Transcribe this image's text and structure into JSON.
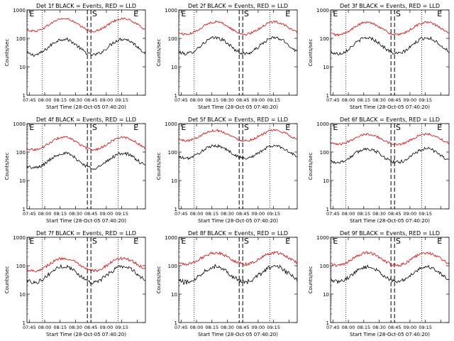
{
  "chart_data": [
    {
      "type": "line",
      "title": "Det 1f BLACK = Events, RED = LLD",
      "xlabel": "Start Time (28-Oct-05 07:40:20)",
      "ylabel": "Counts/sec",
      "yscale": "log",
      "ylim": [
        1,
        1000
      ],
      "ytick_labels": [
        "1",
        "10",
        "100",
        "1000"
      ],
      "xtick_labels": [
        "07:45",
        "08:00",
        "08:15",
        "08:30",
        "08:45",
        "09:00",
        "09:15"
      ],
      "markers": [
        "E",
        "S",
        "E"
      ],
      "series": [
        {
          "name": "Events",
          "color": "#000000",
          "base": 50,
          "amplitude": 0.28,
          "noise": 0.06
        },
        {
          "name": "LLD",
          "color": "#e00000",
          "base": 300,
          "amplitude": 0.22,
          "noise": 0.04
        }
      ]
    },
    {
      "type": "line",
      "title": "Det 2f BLACK = Events, RED = LLD",
      "xlabel": "Start Time (28-Oct-05 07:40:20)",
      "ylabel": "Counts/sec",
      "yscale": "log",
      "ylim": [
        1,
        1000
      ],
      "ytick_labels": [
        "1",
        "10",
        "100",
        "1000"
      ],
      "xtick_labels": [
        "07:45",
        "08:00",
        "08:15",
        "08:30",
        "08:45",
        "09:00",
        "09:15"
      ],
      "markers": [
        "E",
        "S",
        "E"
      ],
      "series": [
        {
          "name": "Events",
          "color": "#000000",
          "base": 55,
          "amplitude": 0.28,
          "noise": 0.06
        },
        {
          "name": "LLD",
          "color": "#e00000",
          "base": 230,
          "amplitude": 0.22,
          "noise": 0.04
        }
      ]
    },
    {
      "type": "line",
      "title": "Det 3f BLACK = Events, RED = LLD",
      "xlabel": "Start Time (28-Oct-05 07:40:20)",
      "ylabel": "Counts/sec",
      "yscale": "log",
      "ylim": [
        1,
        1000
      ],
      "ytick_labels": [
        "1",
        "10",
        "100",
        "1000"
      ],
      "xtick_labels": [
        "07:45",
        "08:00",
        "08:15",
        "08:30",
        "08:45",
        "09:00",
        "09:15"
      ],
      "markers": [
        "E",
        "S",
        "E"
      ],
      "series": [
        {
          "name": "Events",
          "color": "#000000",
          "base": 55,
          "amplitude": 0.28,
          "noise": 0.06
        },
        {
          "name": "LLD",
          "color": "#e00000",
          "base": 220,
          "amplitude": 0.22,
          "noise": 0.04
        }
      ]
    },
    {
      "type": "line",
      "title": "Det 4f BLACK = Events, RED = LLD",
      "xlabel": "Start Time (28-Oct-05 07:40:20)",
      "ylabel": "Counts/sec",
      "yscale": "log",
      "ylim": [
        1,
        1000
      ],
      "ytick_labels": [
        "1",
        "10",
        "100",
        "1000"
      ],
      "xtick_labels": [
        "07:45",
        "08:00",
        "08:15",
        "08:30",
        "08:45",
        "09:00",
        "09:15"
      ],
      "markers": [
        "E",
        "S",
        "E"
      ],
      "series": [
        {
          "name": "Events",
          "color": "#000000",
          "base": 50,
          "amplitude": 0.26,
          "noise": 0.06
        },
        {
          "name": "LLD",
          "color": "#e00000",
          "base": 200,
          "amplitude": 0.22,
          "noise": 0.04
        }
      ]
    },
    {
      "type": "line",
      "title": "Det 5f BLACK = Events, RED = LLD",
      "xlabel": "Start Time (28-Oct-05 07:40:20)",
      "ylabel": "Counts/sec",
      "yscale": "log",
      "ylim": [
        1,
        1000
      ],
      "ytick_labels": [
        "1",
        "10",
        "100",
        "1000"
      ],
      "xtick_labels": [
        "07:45",
        "08:00",
        "08:15",
        "08:30",
        "08:45",
        "09:00",
        "09:15"
      ],
      "markers": [
        "E",
        "S",
        "E"
      ],
      "series": [
        {
          "name": "Events",
          "color": "#000000",
          "base": 100,
          "amplitude": 0.22,
          "noise": 0.05
        },
        {
          "name": "LLD",
          "color": "#e00000",
          "base": 380,
          "amplitude": 0.18,
          "noise": 0.04
        }
      ]
    },
    {
      "type": "line",
      "title": "Det 6f BLACK = Events, RED = LLD",
      "xlabel": "Start Time (28-Oct-05 07:40:20)",
      "ylabel": "Counts/sec",
      "yscale": "log",
      "ylim": [
        1,
        1000
      ],
      "ytick_labels": [
        "1",
        "10",
        "100",
        "1000"
      ],
      "xtick_labels": [
        "07:45",
        "08:00",
        "08:15",
        "08:30",
        "08:45",
        "09:00",
        "09:15"
      ],
      "markers": [
        "E",
        "S",
        "E"
      ],
      "series": [
        {
          "name": "Events",
          "color": "#000000",
          "base": 75,
          "amplitude": 0.24,
          "noise": 0.06
        },
        {
          "name": "LLD",
          "color": "#e00000",
          "base": 280,
          "amplitude": 0.18,
          "noise": 0.04
        }
      ]
    },
    {
      "type": "line",
      "title": "Det 7f BLACK = Events, RED = LLD",
      "xlabel": "Start Time (28-Oct-05 07:40:20)",
      "ylabel": "Counts/sec",
      "yscale": "log",
      "ylim": [
        1,
        1000
      ],
      "ytick_labels": [
        "1",
        "10",
        "100",
        "1000"
      ],
      "xtick_labels": [
        "07:45",
        "08:00",
        "08:15",
        "08:30",
        "08:45",
        "09:00",
        "09:15"
      ],
      "markers": [
        "E",
        "S",
        "E"
      ],
      "series": [
        {
          "name": "Events",
          "color": "#000000",
          "base": 50,
          "amplitude": 0.28,
          "noise": 0.07
        },
        {
          "name": "LLD",
          "color": "#e00000",
          "base": 110,
          "amplitude": 0.22,
          "noise": 0.05
        }
      ]
    },
    {
      "type": "line",
      "title": "Det 8f BLACK = Events, RED = LLD",
      "xlabel": "Start Time (28-Oct-05 07:40:20)",
      "ylabel": "Counts/sec",
      "yscale": "log",
      "ylim": [
        1,
        1000
      ],
      "ytick_labels": [
        "1",
        "10",
        "100",
        "1000"
      ],
      "xtick_labels": [
        "07:45",
        "08:00",
        "08:15",
        "08:30",
        "08:45",
        "09:00",
        "09:15"
      ],
      "markers": [
        "E",
        "S",
        "E"
      ],
      "series": [
        {
          "name": "Events",
          "color": "#000000",
          "base": 50,
          "amplitude": 0.28,
          "noise": 0.08
        },
        {
          "name": "LLD",
          "color": "#e00000",
          "base": 180,
          "amplitude": 0.2,
          "noise": 0.05
        }
      ]
    },
    {
      "type": "line",
      "title": "Det 9f BLACK = Events, RED = LLD",
      "xlabel": "Start Time (28-Oct-05 07:40:20)",
      "ylabel": "Counts/sec",
      "yscale": "log",
      "ylim": [
        1,
        1000
      ],
      "ytick_labels": [
        "1",
        "10",
        "100",
        "1000"
      ],
      "xtick_labels": [
        "07:45",
        "08:00",
        "08:15",
        "08:30",
        "08:45",
        "09:00",
        "09:15"
      ],
      "markers": [
        "E",
        "S",
        "E"
      ],
      "series": [
        {
          "name": "Events",
          "color": "#000000",
          "base": 50,
          "amplitude": 0.26,
          "noise": 0.06
        },
        {
          "name": "LLD",
          "color": "#e00000",
          "base": 170,
          "amplitude": 0.22,
          "noise": 0.05
        }
      ]
    }
  ]
}
